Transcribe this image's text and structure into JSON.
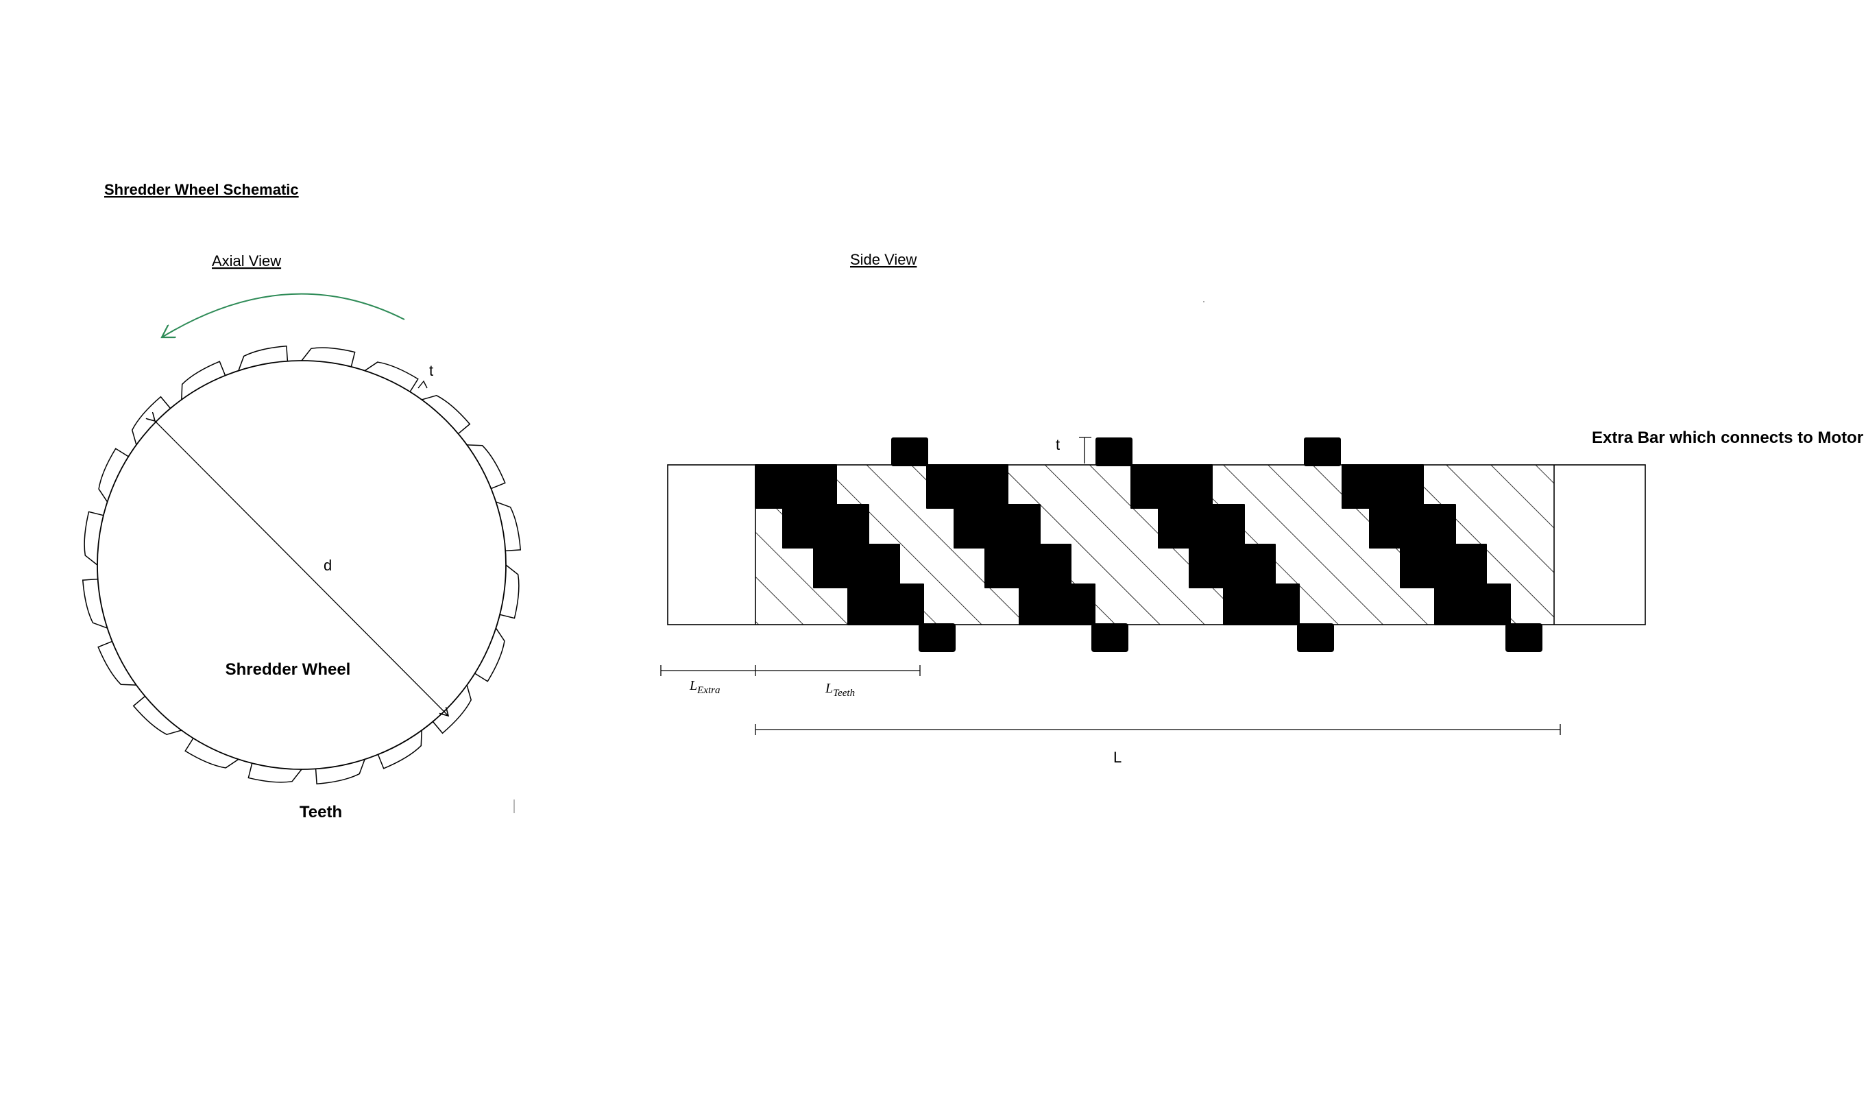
{
  "title": "Shredder Wheel Schematic",
  "axial_view": {
    "heading": "Axial View",
    "diameter_label": "d",
    "tooth_height_label": "t",
    "wheel_label": "Shredder Wheel",
    "teeth_label": "Teeth",
    "rotation_arrow_color": "#2e8b57",
    "tooth_count": 20
  },
  "side_view": {
    "heading": "Side View",
    "tooth_height_label": "t",
    "extra_bar_label": "Extra Bar which connects to Motor",
    "l_extra_label": {
      "main": "L",
      "sub": "Extra"
    },
    "l_teeth_label": {
      "main": "L",
      "sub": "Teeth"
    },
    "total_length_label": "L",
    "tooth_blocks": 4
  }
}
